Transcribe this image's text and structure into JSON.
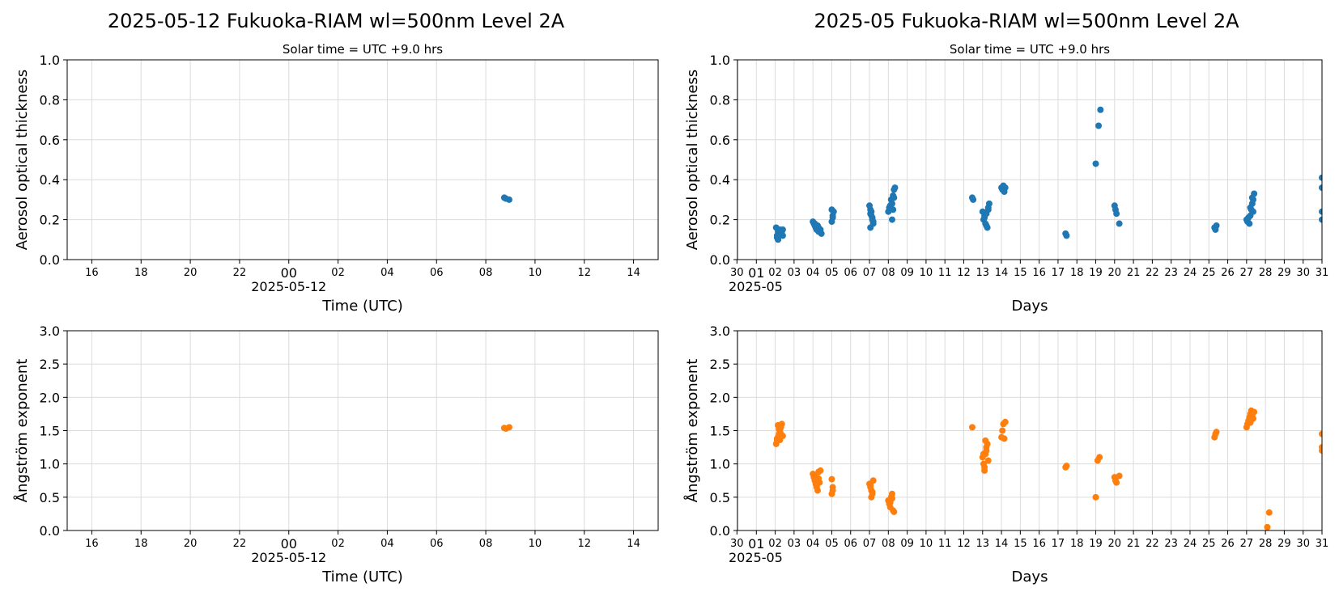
{
  "titles": {
    "left": "2025-05-12  Fukuoka-RIAM  wl=500nm  Level 2A",
    "right": "2025-05  Fukuoka-RIAM  wl=500nm  Level 2A"
  },
  "colors": {
    "aot": "#1f77b4",
    "angstrom": "#ff7f0e"
  },
  "chart_data": [
    {
      "type": "scatter",
      "subtitle": "Solar time = UTC +9.0 hrs",
      "xlabel": "Time (UTC)",
      "ylabel": "Aerosol optical thickness",
      "ylim": [
        0,
        1.0
      ],
      "yticks": [
        "0.0",
        "0.2",
        "0.4",
        "0.6",
        "0.8",
        "1.0"
      ],
      "xlim_hours": [
        -9.0,
        15.0
      ],
      "xtick_labels": [
        "16",
        "18",
        "20",
        "22",
        "00",
        "02",
        "04",
        "06",
        "08",
        "10",
        "12",
        "14"
      ],
      "xtick_date": "2025-05-12",
      "grid": true,
      "series": [
        {
          "color": "#1f77b4",
          "x_hours": [
            8.75,
            8.82,
            8.95
          ],
          "y": [
            0.31,
            0.305,
            0.3
          ]
        }
      ]
    },
    {
      "type": "scatter",
      "subtitle": "Solar time = UTC +9.0 hrs",
      "xlabel": "Days",
      "ylabel": "Aerosol optical thickness",
      "ylim": [
        0,
        1.0
      ],
      "yticks": [
        "0.0",
        "0.2",
        "0.4",
        "0.6",
        "0.8",
        "1.0"
      ],
      "xlim_days": [
        0.0,
        31.0
      ],
      "xtick_labels": [
        "30",
        "01",
        "02",
        "03",
        "04",
        "05",
        "06",
        "07",
        "08",
        "09",
        "10",
        "11",
        "12",
        "13",
        "14",
        "15",
        "16",
        "17",
        "18",
        "19",
        "20",
        "21",
        "22",
        "23",
        "24",
        "25",
        "26",
        "27",
        "28",
        "29",
        "30",
        "31"
      ],
      "xtick_date": "2025-05",
      "grid": true,
      "series": [
        {
          "color": "#1f77b4",
          "x_days": [
            2.05,
            2.1,
            2.15,
            2.2,
            2.25,
            2.3,
            2.35,
            2.4,
            2.1,
            2.2,
            2.3,
            2.4,
            2.15,
            4.0,
            4.05,
            4.1,
            4.15,
            4.2,
            4.25,
            4.3,
            4.35,
            4.4,
            4.45,
            4.1,
            4.2,
            4.3,
            5.0,
            5.05,
            5.1,
            5.0,
            5.05,
            7.0,
            7.05,
            7.1,
            7.15,
            7.2,
            7.05,
            7.1,
            7.15,
            7.2,
            7.05,
            8.0,
            8.05,
            8.1,
            8.15,
            8.2,
            8.25,
            8.3,
            8.35,
            8.2,
            8.3,
            8.25,
            12.45,
            12.5,
            13.0,
            13.05,
            13.1,
            13.15,
            13.2,
            13.25,
            13.3,
            13.35,
            13.1,
            13.2,
            13.3,
            14.0,
            14.05,
            14.1,
            14.15,
            14.2,
            17.4,
            17.45,
            19.0,
            19.15,
            19.25,
            20.0,
            20.05,
            20.1,
            20.25,
            25.3,
            25.35,
            25.4,
            27.0,
            27.05,
            27.1,
            27.15,
            27.2,
            27.25,
            27.3,
            27.35,
            27.4,
            27.2,
            27.3,
            27.35,
            31.0,
            31.0,
            31.0,
            31.0
          ],
          "y": [
            0.16,
            0.11,
            0.14,
            0.12,
            0.15,
            0.13,
            0.14,
            0.15,
            0.12,
            0.14,
            0.13,
            0.12,
            0.1,
            0.19,
            0.18,
            0.17,
            0.16,
            0.15,
            0.17,
            0.16,
            0.14,
            0.15,
            0.13,
            0.18,
            0.15,
            0.14,
            0.25,
            0.22,
            0.24,
            0.19,
            0.21,
            0.27,
            0.25,
            0.22,
            0.2,
            0.18,
            0.16,
            0.24,
            0.21,
            0.19,
            0.23,
            0.24,
            0.26,
            0.27,
            0.3,
            0.28,
            0.32,
            0.35,
            0.36,
            0.2,
            0.31,
            0.25,
            0.31,
            0.3,
            0.24,
            0.2,
            0.22,
            0.18,
            0.17,
            0.16,
            0.25,
            0.28,
            0.21,
            0.23,
            0.26,
            0.36,
            0.35,
            0.37,
            0.34,
            0.36,
            0.13,
            0.12,
            0.48,
            0.67,
            0.75,
            0.27,
            0.25,
            0.23,
            0.18,
            0.16,
            0.15,
            0.17,
            0.2,
            0.19,
            0.21,
            0.18,
            0.22,
            0.25,
            0.28,
            0.3,
            0.33,
            0.26,
            0.31,
            0.24,
            0.41,
            0.36,
            0.24,
            0.2
          ]
        }
      ]
    },
    {
      "type": "scatter",
      "xlabel": "Time (UTC)",
      "ylabel": "Ångström exponent",
      "ylim": [
        0,
        3.0
      ],
      "yticks": [
        "0.0",
        "0.5",
        "1.0",
        "1.5",
        "2.0",
        "2.5",
        "3.0"
      ],
      "xlim_hours": [
        -9.0,
        15.0
      ],
      "xtick_labels": [
        "16",
        "18",
        "20",
        "22",
        "00",
        "02",
        "04",
        "06",
        "08",
        "10",
        "12",
        "14"
      ],
      "xtick_date": "2025-05-12",
      "grid": true,
      "series": [
        {
          "color": "#ff7f0e",
          "x_hours": [
            8.75,
            8.82,
            8.95
          ],
          "y": [
            1.54,
            1.53,
            1.55
          ]
        }
      ]
    },
    {
      "type": "scatter",
      "xlabel": "Days",
      "ylabel": "Ångström exponent",
      "ylim": [
        0,
        3.0
      ],
      "yticks": [
        "0.0",
        "0.5",
        "1.0",
        "1.5",
        "2.0",
        "2.5",
        "3.0"
      ],
      "xlim_days": [
        0.0,
        31.0
      ],
      "xtick_labels": [
        "30",
        "01",
        "02",
        "03",
        "04",
        "05",
        "06",
        "07",
        "08",
        "09",
        "10",
        "11",
        "12",
        "13",
        "14",
        "15",
        "16",
        "17",
        "18",
        "19",
        "20",
        "21",
        "22",
        "23",
        "24",
        "25",
        "26",
        "27",
        "28",
        "29",
        "30",
        "31"
      ],
      "xtick_date": "2025-05",
      "grid": true,
      "series": [
        {
          "color": "#ff7f0e",
          "x_days": [
            2.05,
            2.1,
            2.15,
            2.2,
            2.25,
            2.3,
            2.35,
            2.4,
            2.1,
            2.2,
            2.3,
            2.15,
            2.25,
            4.0,
            4.05,
            4.1,
            4.15,
            4.2,
            4.25,
            4.3,
            4.35,
            4.1,
            4.2,
            4.3,
            4.4,
            5.0,
            5.05,
            5.0,
            5.05,
            7.0,
            7.05,
            7.1,
            7.15,
            7.2,
            7.05,
            7.1,
            7.15,
            8.0,
            8.05,
            8.1,
            8.15,
            8.2,
            8.25,
            8.3,
            8.1,
            8.2,
            12.45,
            13.0,
            13.05,
            13.1,
            13.15,
            13.2,
            13.25,
            13.3,
            13.1,
            13.2,
            13.05,
            13.15,
            14.0,
            14.05,
            14.1,
            14.15,
            14.2,
            17.4,
            17.45,
            19.0,
            19.1,
            19.2,
            20.0,
            20.05,
            20.1,
            20.25,
            25.3,
            25.35,
            25.4,
            27.0,
            27.05,
            27.1,
            27.15,
            27.2,
            27.25,
            27.3,
            27.35,
            27.4,
            27.2,
            28.1,
            28.2,
            31.0,
            31.0,
            31.0
          ],
          "y": [
            1.3,
            1.35,
            1.4,
            1.45,
            1.5,
            1.55,
            1.6,
            1.42,
            1.38,
            1.52,
            1.45,
            1.58,
            1.36,
            0.85,
            0.8,
            0.75,
            0.7,
            0.65,
            0.6,
            0.78,
            0.72,
            0.82,
            0.68,
            0.88,
            0.9,
            0.77,
            0.6,
            0.55,
            0.65,
            0.7,
            0.65,
            0.6,
            0.55,
            0.75,
            0.68,
            0.5,
            0.58,
            0.45,
            0.4,
            0.35,
            0.5,
            0.55,
            0.3,
            0.28,
            0.42,
            0.48,
            1.55,
            1.1,
            1.0,
            0.95,
            1.15,
            1.25,
            1.3,
            1.05,
            0.9,
            1.2,
            1.15,
            1.35,
            1.4,
            1.5,
            1.6,
            1.38,
            1.63,
            0.95,
            0.97,
            0.5,
            1.05,
            1.1,
            0.8,
            0.75,
            0.72,
            0.82,
            1.4,
            1.45,
            1.48,
            1.55,
            1.6,
            1.65,
            1.7,
            1.75,
            1.8,
            1.72,
            1.68,
            1.78,
            1.62,
            0.05,
            0.27,
            1.45,
            1.25,
            1.2
          ]
        }
      ]
    }
  ]
}
